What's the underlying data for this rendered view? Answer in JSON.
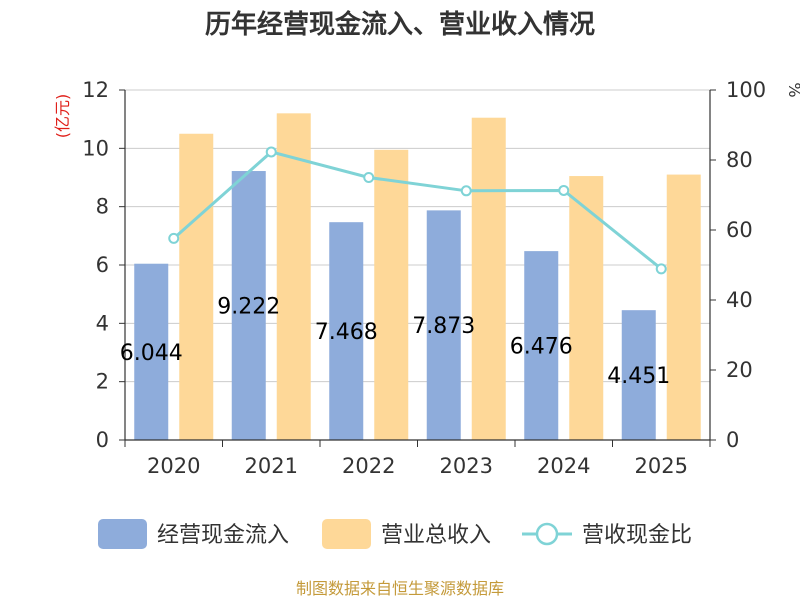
{
  "chart_data": {
    "type": "bar",
    "title": "历年经营现金流入、营业收入情况",
    "categories": [
      "2020",
      "2021",
      "2022",
      "2023",
      "2024",
      "2025"
    ],
    "series": [
      {
        "name": "经营现金流入",
        "type": "bar",
        "axis": "left",
        "values": [
          6.044,
          9.222,
          7.468,
          7.873,
          6.476,
          4.451
        ],
        "labels": [
          "6.044",
          "9.222",
          "7.468",
          "7.873",
          "6.476",
          "4.451"
        ]
      },
      {
        "name": "营业总收入",
        "type": "bar",
        "axis": "left",
        "values": [
          10.5,
          11.2,
          9.95,
          11.05,
          9.05,
          9.1
        ]
      },
      {
        "name": "营收现金比",
        "type": "line",
        "axis": "right",
        "values": [
          57.6,
          82.3,
          75.0,
          71.2,
          71.3,
          48.9
        ]
      }
    ],
    "left_axis": {
      "label": "(亿元)",
      "ylim": [
        0,
        12
      ],
      "ticks": [
        "0",
        "2",
        "4",
        "6",
        "8",
        "10",
        "12"
      ]
    },
    "right_axis": {
      "label": "%",
      "ylim": [
        0,
        100
      ],
      "ticks": [
        "0",
        "20",
        "40",
        "60",
        "80",
        "100"
      ]
    },
    "grid": true,
    "legend_position": "bottom",
    "colors": {
      "cash": "#8eacdb",
      "revenue": "#fed898",
      "ratio": "#7fd3d6",
      "unit": "#e0201a",
      "source": "#c49a3a",
      "axis": "#333333",
      "grid": "#cccccc"
    }
  },
  "legend": {
    "items": [
      {
        "label": "经营现金流入"
      },
      {
        "label": "营业总收入"
      },
      {
        "label": "营收现金比"
      }
    ]
  },
  "source": "制图数据来自恒生聚源数据库"
}
